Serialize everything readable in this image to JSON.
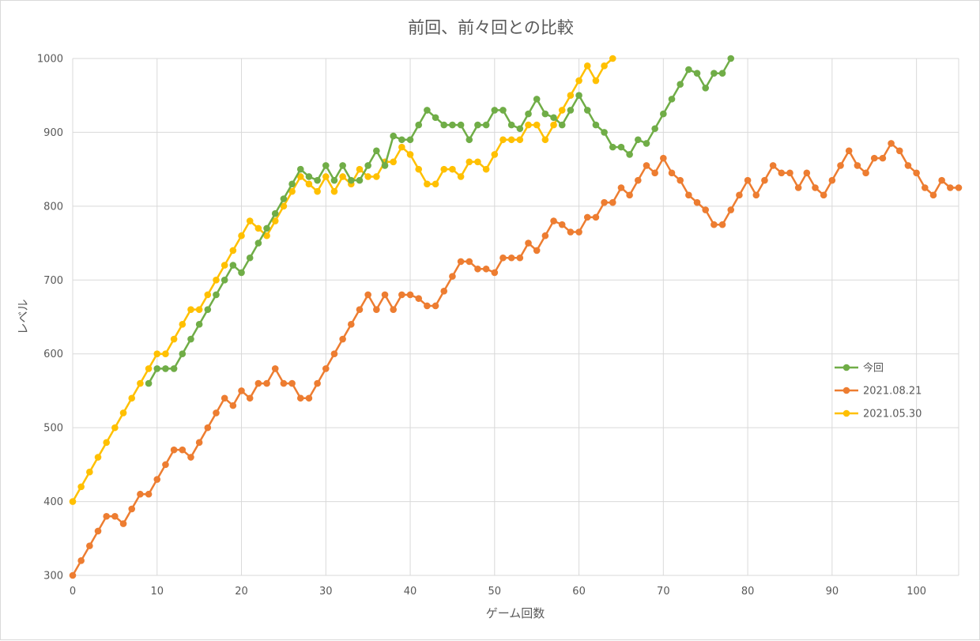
{
  "chart_data": {
    "type": "line",
    "title": "前回、前々回との比較",
    "xlabel": "ゲーム回数",
    "ylabel": "レベル",
    "xlim": [
      0,
      105
    ],
    "ylim": [
      300,
      1000
    ],
    "xticks": [
      0,
      10,
      20,
      30,
      40,
      50,
      60,
      70,
      80,
      90,
      100
    ],
    "yticks": [
      300,
      400,
      500,
      600,
      700,
      800,
      900,
      1000
    ],
    "grid": true,
    "legend_position": "right",
    "series": [
      {
        "name": "今回",
        "color": "#70ad47",
        "x0": 9,
        "values": [
          560,
          580,
          580,
          580,
          600,
          620,
          640,
          660,
          680,
          700,
          720,
          710,
          730,
          750,
          770,
          790,
          810,
          830,
          850,
          840,
          835,
          855,
          835,
          855,
          835,
          835,
          855,
          875,
          855,
          895,
          890,
          890,
          910,
          930,
          920,
          910,
          910,
          910,
          890,
          910,
          910,
          930,
          930,
          910,
          905,
          925,
          945,
          925,
          920,
          910,
          930,
          950,
          930,
          910,
          900,
          880,
          880,
          870,
          890,
          885,
          905,
          925,
          945,
          965,
          985,
          980,
          960,
          980,
          980,
          1000
        ]
      },
      {
        "name": "2021.08.21",
        "color": "#ed7d31",
        "x0": 0,
        "values": [
          300,
          320,
          340,
          360,
          380,
          380,
          370,
          390,
          410,
          410,
          430,
          450,
          470,
          470,
          460,
          480,
          500,
          520,
          540,
          530,
          550,
          540,
          560,
          560,
          580,
          560,
          560,
          540,
          540,
          560,
          580,
          600,
          620,
          640,
          660,
          680,
          660,
          680,
          660,
          680,
          680,
          675,
          665,
          665,
          685,
          705,
          725,
          725,
          715,
          715,
          710,
          730,
          730,
          730,
          750,
          740,
          760,
          780,
          775,
          765,
          765,
          785,
          785,
          805,
          805,
          825,
          815,
          835,
          855,
          845,
          865,
          845,
          835,
          815,
          805,
          795,
          775,
          775,
          795,
          815,
          835,
          815,
          835,
          855,
          845,
          845,
          825,
          845,
          825,
          815,
          835,
          855,
          875,
          855,
          845,
          865,
          865,
          885,
          875,
          855,
          845,
          825,
          815,
          835,
          825,
          825
        ]
      },
      {
        "name": "2021.05.30",
        "color": "#ffc000",
        "x0": 0,
        "values": [
          400,
          420,
          440,
          460,
          480,
          500,
          520,
          540,
          560,
          580,
          600,
          600,
          620,
          640,
          660,
          660,
          680,
          700,
          720,
          740,
          760,
          780,
          770,
          760,
          780,
          800,
          820,
          840,
          830,
          820,
          840,
          820,
          840,
          830,
          850,
          840,
          840,
          860,
          860,
          880,
          870,
          850,
          830,
          830,
          850,
          850,
          840,
          860,
          860,
          850,
          870,
          890,
          890,
          890,
          910,
          910,
          890,
          910,
          930,
          950,
          970,
          990,
          970,
          990,
          1000
        ]
      }
    ]
  }
}
